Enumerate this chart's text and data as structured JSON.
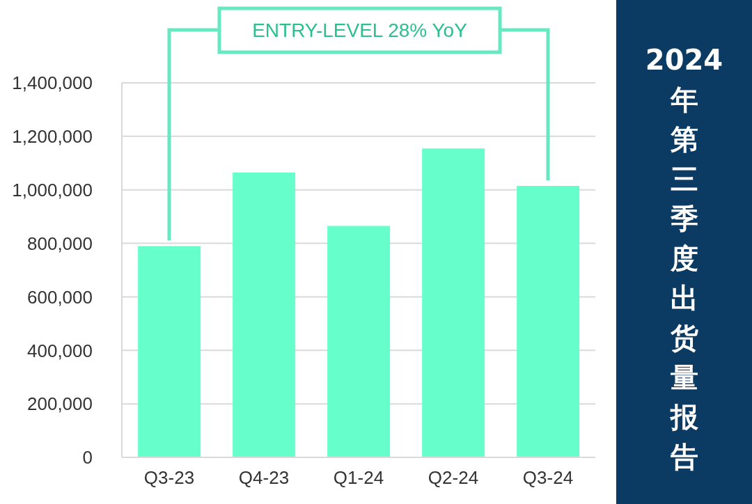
{
  "chart_data": {
    "type": "bar",
    "title": "2024年第三季度出货量报告",
    "annotations": [
      "ENTRY-LEVEL 28% YoY"
    ],
    "categories": [
      "Q3-23",
      "Q4-23",
      "Q1-24",
      "Q2-24",
      "Q3-24"
    ],
    "values": [
      790000,
      1065000,
      865000,
      1155000,
      1015000
    ],
    "color": "#66ffcc",
    "ylim": [
      0,
      1400000
    ],
    "yticks": [
      0,
      {
        "value": 200000,
        "label": "200,000"
      },
      {
        "value": 400000,
        "label": "400,000"
      },
      {
        "value": 600000,
        "label": "600,000"
      },
      {
        "value": 800000,
        "label": "800,000"
      },
      {
        "value": 1000000,
        "label": "1,000,000"
      },
      {
        "value": 1200000,
        "label": "1,200,000"
      },
      {
        "value": 1400000,
        "label": "1,400,000"
      }
    ],
    "grid": "y"
  }
}
